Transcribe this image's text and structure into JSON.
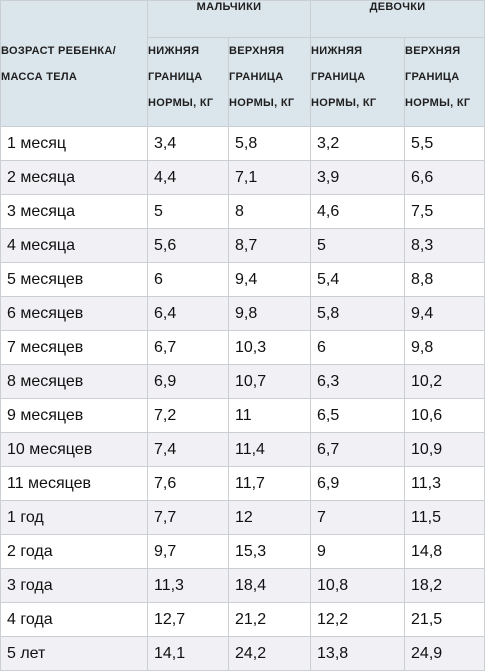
{
  "table": {
    "age_header": "ВОЗРАСТ РЕБЕНКА/\nМАССА ТЕЛА",
    "groups": [
      "МАЛЬЧИКИ",
      "ДЕВОЧКИ"
    ],
    "subheaders": [
      "НИЖНЯЯ\nГРАНИЦА\nНОРМЫ, КГ",
      "ВЕРХНЯЯ\nГРАНИЦА\nНОРМЫ, КГ",
      "НИЖНЯЯ\nГРАНИЦА\nНОРМЫ, КГ",
      "ВЕРХНЯЯ\nГРАНИЦА\nНОРМЫ, КГ"
    ],
    "rows": [
      [
        "1 месяц",
        "3,4",
        "5,8",
        "3,2",
        "5,5"
      ],
      [
        "2 месяца",
        "4,4",
        "7,1",
        "3,9",
        "6,6"
      ],
      [
        "3 месяца",
        "5",
        "8",
        "4,6",
        "7,5"
      ],
      [
        "4 месяца",
        "5,6",
        "8,7",
        "5",
        "8,3"
      ],
      [
        "5 месяцев",
        "6",
        "9,4",
        "5,4",
        "8,8"
      ],
      [
        "6 месяцев",
        "6,4",
        "9,8",
        "5,8",
        "9,4"
      ],
      [
        "7 месяцев",
        "6,7",
        "10,3",
        "6",
        "9,8"
      ],
      [
        "8 месяцев",
        "6,9",
        "10,7",
        "6,3",
        "10,2"
      ],
      [
        "9 месяцев",
        "7,2",
        "11",
        "6,5",
        "10,6"
      ],
      [
        "10 месяцев",
        "7,4",
        "11,4",
        "6,7",
        "10,9"
      ],
      [
        "11 месяцев",
        "7,6",
        "11,7",
        "6,9",
        "11,3"
      ],
      [
        "1 год",
        "7,7",
        "12",
        "7",
        "11,5"
      ],
      [
        "2 года",
        "9,7",
        "15,3",
        "9",
        "14,8"
      ],
      [
        "3 года",
        "11,3",
        "18,4",
        "10,8",
        "18,2"
      ],
      [
        "4 года",
        "12,7",
        "21,2",
        "12,2",
        "21,5"
      ],
      [
        "5 лет",
        "14,1",
        "24,2",
        "13,8",
        "24,9"
      ]
    ]
  }
}
